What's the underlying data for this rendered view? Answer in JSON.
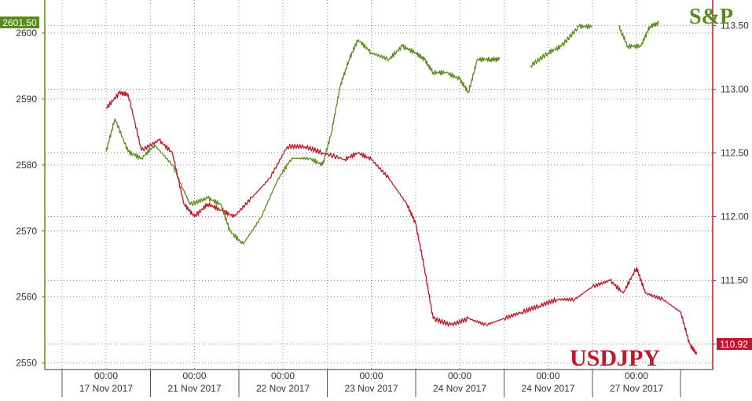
{
  "chart_data": {
    "type": "line",
    "grid": true,
    "x_time_labels": [
      "00:00",
      "00:00",
      "00:00",
      "00:00",
      "00:00",
      "00:00",
      "00:00"
    ],
    "x_date_labels": [
      "17 Nov 2017",
      "21 Nov 2017",
      "22 Nov 2017",
      "23 Nov 2017",
      "24 Nov 2017",
      "24 Nov 2017",
      "27 Nov 2017"
    ],
    "left_axis": {
      "ticks": [
        "2550",
        "2560",
        "2570",
        "2580",
        "2590",
        "2600"
      ],
      "range": [
        2549,
        2605
      ],
      "last_value_label": "2601.50",
      "color": "#5a8a1a"
    },
    "right_axis": {
      "ticks": [
        "111.00",
        "111.50",
        "112.00",
        "112.50",
        "113.00",
        "113.50"
      ],
      "range": [
        110.8,
        113.7
      ],
      "last_value_label": "110.92",
      "color": "#c0182a"
    },
    "series": [
      {
        "name": "S&P",
        "axis": "left",
        "color": "#5a8a1a",
        "points": [
          [
            0,
            2582
          ],
          [
            0.1,
            2587
          ],
          [
            0.25,
            2582
          ],
          [
            0.4,
            2581
          ],
          [
            0.55,
            2583
          ],
          [
            0.75,
            2580
          ],
          [
            0.95,
            2574
          ],
          [
            1.15,
            2575
          ],
          [
            1.3,
            2574
          ],
          [
            1.4,
            2570
          ],
          [
            1.55,
            2568
          ],
          [
            1.75,
            2572
          ],
          [
            1.95,
            2578
          ],
          [
            2.1,
            2581
          ],
          [
            2.3,
            2581
          ],
          [
            2.45,
            2580
          ],
          [
            2.55,
            2585
          ],
          [
            2.65,
            2592
          ],
          [
            2.75,
            2596
          ],
          [
            2.85,
            2599
          ],
          [
            3.0,
            2597
          ],
          [
            3.2,
            2596
          ],
          [
            3.35,
            2598
          ],
          [
            3.5,
            2597
          ],
          [
            3.6,
            2596
          ],
          [
            3.7,
            2594
          ],
          [
            3.85,
            2594
          ],
          [
            4.0,
            2593
          ],
          [
            4.1,
            2591
          ],
          [
            4.2,
            2596
          ],
          [
            4.35,
            2596
          ],
          [
            4.45,
            2596
          ],
          null,
          [
            4.8,
            2595
          ],
          [
            5.0,
            2597
          ],
          [
            5.15,
            2598
          ],
          [
            5.35,
            2601
          ],
          [
            5.5,
            2601
          ],
          null,
          [
            5.8,
            2601
          ],
          [
            5.9,
            2598
          ],
          [
            6.05,
            2598
          ],
          [
            6.15,
            2601
          ],
          [
            6.25,
            2601.5
          ]
        ]
      },
      {
        "name": "USDJPY",
        "axis": "right",
        "color": "#c0182a",
        "points": [
          [
            0,
            112.85
          ],
          [
            0.15,
            112.97
          ],
          [
            0.25,
            112.96
          ],
          [
            0.4,
            112.52
          ],
          [
            0.6,
            112.6
          ],
          [
            0.75,
            112.5
          ],
          [
            0.88,
            112.1
          ],
          [
            1.0,
            112.0
          ],
          [
            1.15,
            112.1
          ],
          [
            1.3,
            112.05
          ],
          [
            1.45,
            112.0
          ],
          [
            1.65,
            112.15
          ],
          [
            1.85,
            112.3
          ],
          [
            2.05,
            112.55
          ],
          [
            2.25,
            112.55
          ],
          [
            2.45,
            112.5
          ],
          [
            2.7,
            112.45
          ],
          [
            2.85,
            112.5
          ],
          [
            3.0,
            112.45
          ],
          [
            3.2,
            112.3
          ],
          [
            3.4,
            112.1
          ],
          [
            3.5,
            111.95
          ],
          [
            3.6,
            111.6
          ],
          [
            3.7,
            111.2
          ],
          [
            3.9,
            111.15
          ],
          [
            4.1,
            111.2
          ],
          [
            4.3,
            111.15
          ],
          [
            4.5,
            111.2
          ],
          [
            4.7,
            111.25
          ],
          [
            4.9,
            111.3
          ],
          [
            5.1,
            111.35
          ],
          [
            5.3,
            111.35
          ],
          [
            5.5,
            111.45
          ],
          [
            5.7,
            111.5
          ],
          [
            5.85,
            111.4
          ],
          [
            6.0,
            111.6
          ],
          [
            6.1,
            111.4
          ],
          [
            6.3,
            111.35
          ],
          [
            6.5,
            111.25
          ],
          [
            6.6,
            111.0
          ],
          [
            6.68,
            110.92
          ]
        ]
      }
    ]
  }
}
